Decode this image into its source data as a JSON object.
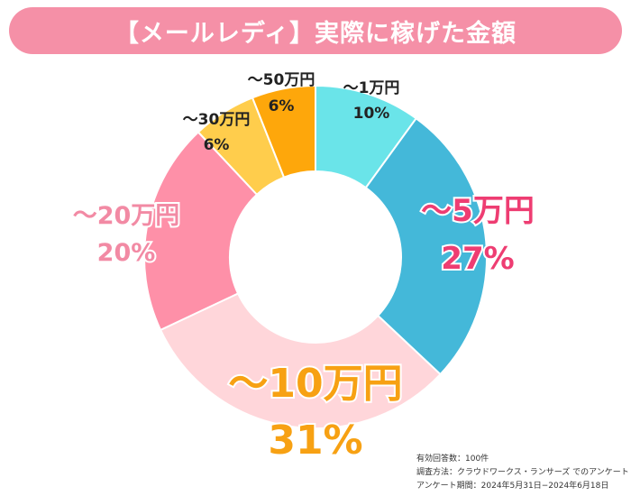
{
  "title": "【メールレディ】実際に稼げた金額",
  "chart_data": {
    "type": "donut",
    "title": "【メールレディ】実際に稼げた金額",
    "slices": [
      {
        "label": "〜1万円",
        "value": 10,
        "value_label": "10%",
        "color": "#6ae4e9",
        "label_color": "#222222"
      },
      {
        "label": "〜5万円",
        "value": 27,
        "value_label": "27%",
        "color": "#44b8d9",
        "label_color": "#ee3d72"
      },
      {
        "label": "〜10万円",
        "value": 31,
        "value_label": "31%",
        "color": "#ffd6da",
        "label_color": "#f7a113"
      },
      {
        "label": "〜20万円",
        "value": 20,
        "value_label": "20%",
        "color": "#fe90a8",
        "label_color": "#f28aa4"
      },
      {
        "label": "〜30万円",
        "value": 6,
        "value_label": "6%",
        "color": "#ffcd4c",
        "label_color": "#222222"
      },
      {
        "label": "〜50万円",
        "value": 6,
        "value_label": "6%",
        "color": "#fea70b",
        "label_color": "#222222"
      }
    ]
  },
  "footnote": {
    "line1": "有効回答数：100件",
    "line2": "調査方法：クラウドワークス・ランサーズ でのアンケート",
    "line3": "アンケート期間：2024年5月31日−2024年6月18日"
  }
}
